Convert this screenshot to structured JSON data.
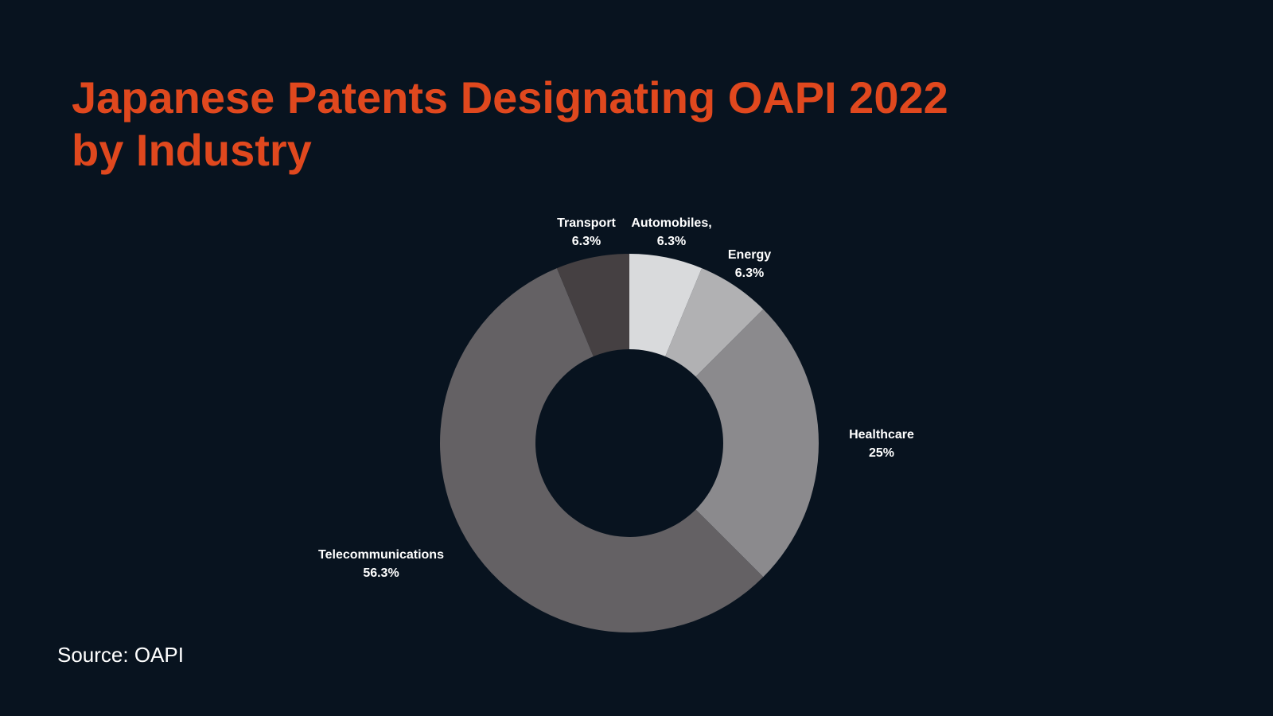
{
  "title_lines": [
    "Japanese Patents Designating OAPI 2022",
    "by Industry"
  ],
  "source": "Source: OAPI",
  "chart_data": {
    "type": "pie",
    "variant": "donut",
    "title": "Japanese Patents Designating OAPI 2022 by Industry",
    "slices": [
      {
        "label": "Automobiles,",
        "value_label": "6.3%",
        "value": 6.25,
        "color": "#d9dadc"
      },
      {
        "label": "Energy",
        "value_label": "6.3%",
        "value": 6.25,
        "color": "#b1b1b3"
      },
      {
        "label": "Healthcare",
        "value_label": "25%",
        "value": 25,
        "color": "#8b8a8d"
      },
      {
        "label": "Telecommunications",
        "value_label": "56.3%",
        "value": 56.25,
        "color": "#646164"
      },
      {
        "label": "Transport",
        "value_label": "6.3%",
        "value": 6.25,
        "color": "#454042"
      }
    ],
    "legend": "none",
    "start_angle": "12 o'clock, clockwise"
  },
  "colors": {
    "background": "#08131f",
    "title": "#e0481e",
    "text": "#ffffff"
  }
}
